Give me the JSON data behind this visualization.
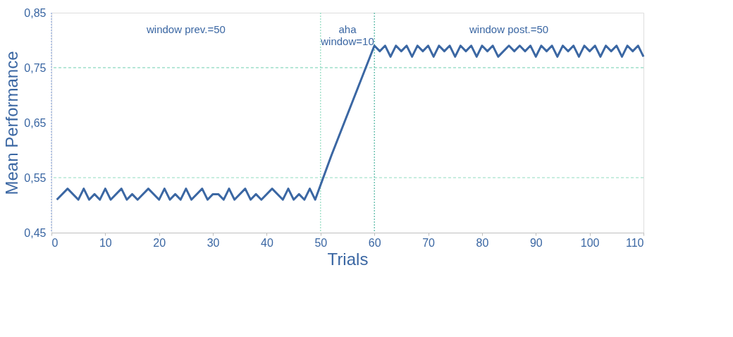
{
  "chart_data": {
    "type": "line",
    "xlabel": "Trials",
    "ylabel": "Mean Performance",
    "xlim": [
      0,
      110
    ],
    "xticks": [
      0,
      10,
      20,
      30,
      40,
      50,
      60,
      70,
      80,
      90,
      100,
      110
    ],
    "ylim": [
      0.45,
      0.85
    ],
    "yticks": [
      {
        "value": 0.45,
        "label": "0,45"
      },
      {
        "value": 0.55,
        "label": "0,55"
      },
      {
        "value": 0.65,
        "label": "0,65"
      },
      {
        "value": 0.75,
        "label": "0,75"
      },
      {
        "value": 0.85,
        "label": "0,85"
      }
    ],
    "grid": false,
    "marker": "none",
    "line_style": "solid",
    "series": [
      {
        "color": "#3b67a3",
        "x": [
          1,
          3,
          5,
          6,
          7,
          8,
          9,
          10,
          11,
          13,
          14,
          15,
          16,
          18,
          20,
          21,
          22,
          23,
          24,
          25,
          26,
          28,
          29,
          30,
          31,
          32,
          33,
          34,
          36,
          37,
          38,
          39,
          41,
          43,
          44,
          45,
          46,
          47,
          48,
          49,
          52,
          56,
          60,
          61,
          62,
          63,
          64,
          65,
          66,
          67,
          68,
          69,
          70,
          71,
          72,
          73,
          74,
          75,
          76,
          77,
          78,
          79,
          80,
          81,
          82,
          83,
          85,
          86,
          87,
          88,
          89,
          90,
          91,
          92,
          93,
          94,
          95,
          96,
          97,
          98,
          99,
          100,
          101,
          102,
          103,
          104,
          105,
          106,
          107,
          108,
          109,
          110
        ],
        "values": [
          0.51,
          0.53,
          0.51,
          0.53,
          0.51,
          0.52,
          0.51,
          0.53,
          0.51,
          0.53,
          0.51,
          0.52,
          0.51,
          0.53,
          0.51,
          0.53,
          0.51,
          0.52,
          0.51,
          0.53,
          0.51,
          0.53,
          0.51,
          0.52,
          0.52,
          0.51,
          0.53,
          0.51,
          0.53,
          0.51,
          0.52,
          0.51,
          0.53,
          0.51,
          0.53,
          0.51,
          0.52,
          0.51,
          0.53,
          0.51,
          0.59,
          0.69,
          0.79,
          0.78,
          0.79,
          0.77,
          0.79,
          0.78,
          0.79,
          0.77,
          0.79,
          0.78,
          0.79,
          0.77,
          0.79,
          0.78,
          0.79,
          0.77,
          0.79,
          0.78,
          0.79,
          0.77,
          0.79,
          0.78,
          0.79,
          0.77,
          0.79,
          0.78,
          0.79,
          0.78,
          0.79,
          0.77,
          0.79,
          0.78,
          0.79,
          0.77,
          0.79,
          0.78,
          0.79,
          0.77,
          0.79,
          0.78,
          0.79,
          0.77,
          0.79,
          0.78,
          0.79,
          0.77,
          0.79,
          0.78,
          0.79,
          0.77
        ]
      }
    ],
    "ref_lines": [
      {
        "axis": "y",
        "value": 0.75,
        "color": "#6fcfb0",
        "line_style": "dashed"
      },
      {
        "axis": "y",
        "value": 0.55,
        "color": "#8fdcbf",
        "line_style": "dashed"
      },
      {
        "axis": "x",
        "value": 0,
        "color": "#8ea8dc",
        "line_style": "dotted"
      },
      {
        "axis": "x",
        "value": 50,
        "color": "#8fdcbf",
        "line_style": "dotted"
      },
      {
        "axis": "x",
        "value": 60,
        "color": "#4fb5a0",
        "line_style": "dotted"
      }
    ],
    "annotations": [
      "window prev.=50",
      "aha\nwindow=10",
      "window post.=50"
    ]
  }
}
